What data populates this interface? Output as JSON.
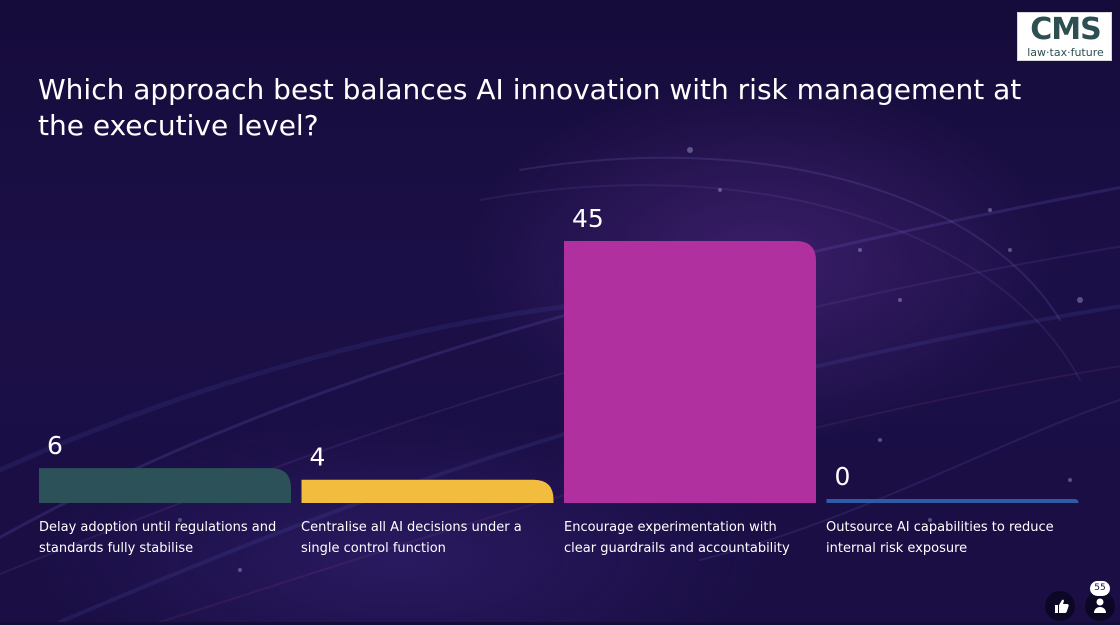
{
  "question": "Which approach best balances AI innovation with risk management at the executive level?",
  "logo": {
    "mark": "CMS",
    "tagline": "law·tax·future"
  },
  "participants": {
    "count": "55",
    "icon": "person-icon"
  },
  "reactions": {
    "icon": "thumbs-up-icon"
  },
  "chart_data": {
    "type": "bar",
    "title": "Which approach best balances AI innovation with risk management at the executive level?",
    "categories": [
      "Delay adoption until regulations and standards fully stabilise",
      "Centralise all AI decisions under a single control function",
      "Encourage experimentation with clear guardrails and accountability",
      "Outsource AI capabilities to reduce internal risk exposure"
    ],
    "values": [
      6,
      4,
      45,
      0
    ],
    "colors": [
      "#2c5158",
      "#f2bc3f",
      "#b0309f",
      "#2f5aa5"
    ],
    "value_labels": [
      "6",
      "4",
      "45",
      "0"
    ],
    "xlabel": "",
    "ylabel": "",
    "ylim": [
      0,
      45
    ],
    "grid": false,
    "legend": "none"
  }
}
